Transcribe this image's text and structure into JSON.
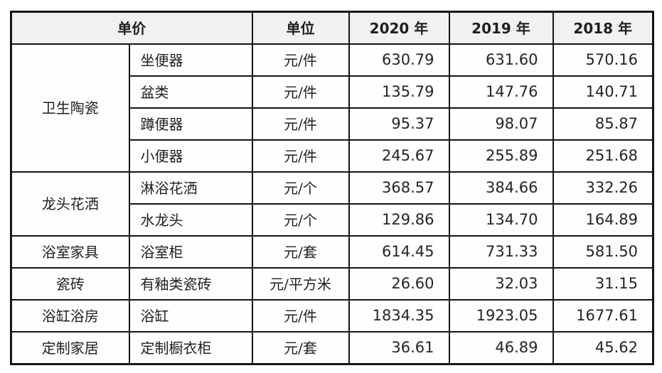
{
  "table": {
    "header": {
      "price_label": "单价",
      "unit_label": "单位",
      "years": [
        "2020 年",
        "2019 年",
        "2018 年"
      ]
    },
    "groups": [
      {
        "category": "卫生陶瓷",
        "rows": [
          {
            "item": "坐便器",
            "unit": "元/件",
            "values": [
              "630.79",
              "631.60",
              "570.16"
            ]
          },
          {
            "item": "盆类",
            "unit": "元/件",
            "values": [
              "135.79",
              "147.76",
              "140.71"
            ]
          },
          {
            "item": "蹲便器",
            "unit": "元/件",
            "values": [
              "95.37",
              "98.07",
              "85.87"
            ]
          },
          {
            "item": "小便器",
            "unit": "元/件",
            "values": [
              "245.67",
              "255.89",
              "251.68"
            ]
          }
        ]
      },
      {
        "category": "龙头花洒",
        "rows": [
          {
            "item": "淋浴花洒",
            "unit": "元/个",
            "values": [
              "368.57",
              "384.66",
              "332.26"
            ]
          },
          {
            "item": "水龙头",
            "unit": "元/个",
            "values": [
              "129.86",
              "134.70",
              "164.89"
            ]
          }
        ]
      },
      {
        "category": "浴室家具",
        "rows": [
          {
            "item": "浴室柜",
            "unit": "元/套",
            "values": [
              "614.45",
              "731.33",
              "581.50"
            ]
          }
        ]
      },
      {
        "category": "瓷砖",
        "rows": [
          {
            "item": "有釉类瓷砖",
            "unit": "元/平方米",
            "values": [
              "26.60",
              "32.03",
              "31.15"
            ]
          }
        ]
      },
      {
        "category": "浴缸浴房",
        "rows": [
          {
            "item": "浴缸",
            "unit": "元/件",
            "values": [
              "1834.35",
              "1923.05",
              "1677.61"
            ]
          }
        ]
      },
      {
        "category": "定制家居",
        "rows": [
          {
            "item": "定制橱衣柜",
            "unit": "元/套",
            "values": [
              "36.61",
              "46.89",
              "45.62"
            ]
          }
        ]
      }
    ],
    "colors": {
      "header_bg": "#f1f1f1",
      "border": "#141414",
      "text": "#1f1f1f",
      "page_bg": "#ffffff"
    }
  }
}
